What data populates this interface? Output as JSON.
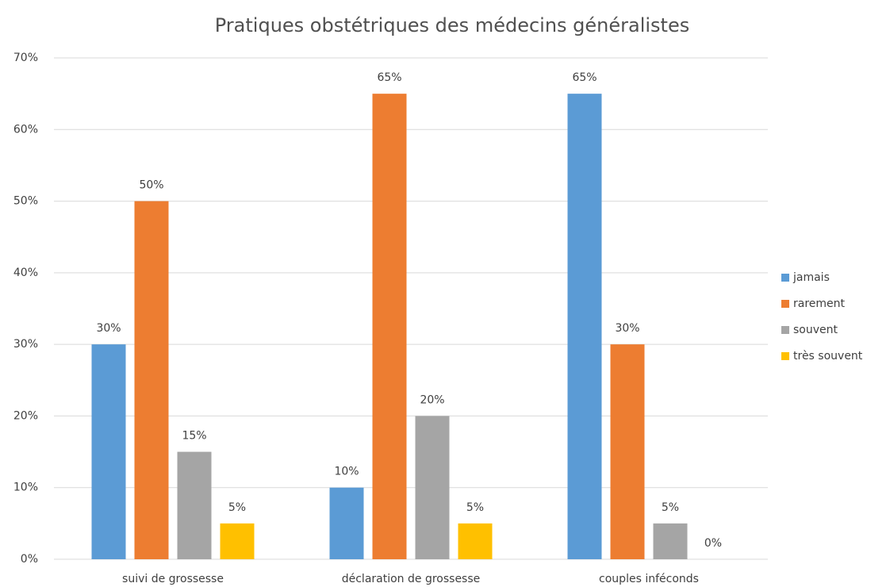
{
  "chart_data": {
    "type": "bar",
    "title": "Pratiques obstétriques des médecins généralistes",
    "categories": [
      "suivi de grossesse",
      "déclaration de grossesse",
      "couples inféconds"
    ],
    "series": [
      {
        "name": "jamais",
        "color": "#5b9bd5",
        "values": [
          30,
          10,
          65
        ],
        "value_labels": [
          "30%",
          "10%",
          "65%"
        ]
      },
      {
        "name": "rarement",
        "color": "#ed7d31",
        "values": [
          50,
          65,
          30
        ],
        "value_labels": [
          "50%",
          "65%",
          "30%"
        ]
      },
      {
        "name": "souvent",
        "color": "#a5a5a5",
        "values": [
          15,
          20,
          5
        ],
        "value_labels": [
          "15%",
          "20%",
          "5%"
        ]
      },
      {
        "name": "très souvent",
        "color": "#ffc000",
        "values": [
          5,
          5,
          0
        ],
        "value_labels": [
          "5%",
          "5%",
          "0%"
        ]
      }
    ],
    "ylim": [
      0,
      70
    ],
    "yticks": [
      {
        "value": 0,
        "label": "0%"
      },
      {
        "value": 10,
        "label": "10%"
      },
      {
        "value": 20,
        "label": "20%"
      },
      {
        "value": 30,
        "label": "30%"
      },
      {
        "value": 40,
        "label": "40%"
      },
      {
        "value": 50,
        "label": "50%"
      },
      {
        "value": 60,
        "label": "60%"
      },
      {
        "value": 70,
        "label": "70%"
      }
    ],
    "grid": true,
    "legend": "right"
  }
}
